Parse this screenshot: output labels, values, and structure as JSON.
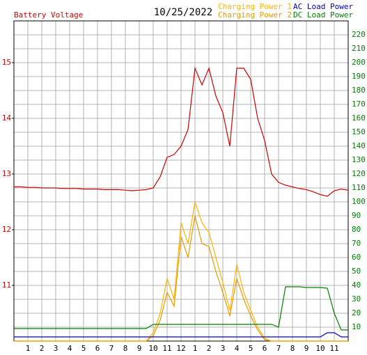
{
  "chart_data": {
    "type": "line",
    "title": "10/25/2022",
    "x": [
      0,
      0.5,
      1,
      1.5,
      2,
      2.5,
      3,
      3.5,
      4,
      4.5,
      5,
      5.5,
      6,
      6.5,
      7,
      7.5,
      8,
      8.5,
      9,
      9.5,
      10,
      10.5,
      11,
      11.5,
      12,
      12.5,
      13,
      13.5,
      14,
      14.5,
      15,
      15.5,
      16,
      16.5,
      17,
      17.5,
      18,
      18.5,
      19,
      19.5,
      20,
      20.5,
      21,
      21.5,
      22,
      22.5,
      23,
      23.5,
      24
    ],
    "xlim": [
      0,
      24
    ],
    "xticks": [
      1,
      2,
      3,
      4,
      5,
      6,
      7,
      8,
      9,
      10,
      11,
      12,
      {
        "value": 13,
        "label": "1"
      },
      {
        "value": 14,
        "label": "2"
      },
      {
        "value": 15,
        "label": "3"
      },
      {
        "value": 16,
        "label": "4"
      },
      {
        "value": 17,
        "label": "5"
      },
      {
        "value": 18,
        "label": "6"
      },
      {
        "value": 19,
        "label": "7"
      },
      {
        "value": 20,
        "label": "8"
      },
      {
        "value": 21,
        "label": "9"
      },
      {
        "value": 22,
        "label": "10"
      },
      {
        "value": 23,
        "label": "11"
      }
    ],
    "ylim": [
      10,
      15.75
    ],
    "yticks": [
      11,
      12,
      13,
      14,
      15
    ],
    "y2lim": [
      0,
      230
    ],
    "y2ticks": [
      10,
      20,
      30,
      40,
      50,
      60,
      70,
      80,
      90,
      100,
      110,
      120,
      130,
      140,
      150,
      160,
      170,
      180,
      190,
      200,
      210,
      220
    ],
    "grid": true,
    "series": [
      {
        "name": "Battery Voltage",
        "color": "#cc0000",
        "values": [
          12.77,
          12.77,
          12.76,
          12.76,
          12.75,
          12.75,
          12.75,
          12.74,
          12.74,
          12.74,
          12.73,
          12.73,
          12.73,
          12.72,
          12.72,
          12.72,
          12.71,
          12.7,
          12.71,
          12.72,
          12.75,
          12.95,
          13.3,
          13.35,
          13.5,
          13.8,
          14.9,
          14.6,
          14.9,
          14.4,
          14.1,
          13.5,
          14.9,
          14.9,
          14.7,
          14.0,
          13.6,
          13.0,
          12.85,
          12.8,
          12.77,
          12.74,
          12.72,
          12.68,
          12.63,
          12.6,
          12.7,
          12.73,
          12.71
        ]
      },
      {
        "name": "Charging Power 1",
        "color": "#ffb400",
        "axis": "y2",
        "values": [
          0,
          0,
          0,
          0,
          0,
          0,
          0,
          0,
          0,
          0,
          0,
          0,
          0,
          0,
          0,
          0,
          0,
          0,
          0,
          0,
          6,
          20,
          45,
          30,
          85,
          70,
          100,
          85,
          78,
          60,
          42,
          22,
          55,
          35,
          22,
          10,
          2,
          0,
          0,
          0,
          0,
          0,
          0,
          0,
          0,
          0,
          0,
          0,
          0
        ]
      },
      {
        "name": "Charging Power 2",
        "color": "#e89a00",
        "axis": "y2",
        "values": [
          0,
          0,
          0,
          0,
          0,
          0,
          0,
          0,
          0,
          0,
          0,
          0,
          0,
          0,
          0,
          0,
          0,
          0,
          0,
          0,
          4,
          15,
          35,
          25,
          75,
          60,
          90,
          70,
          68,
          50,
          35,
          18,
          45,
          30,
          18,
          8,
          1,
          0,
          0,
          0,
          0,
          0,
          0,
          0,
          0,
          0,
          0,
          0,
          0
        ]
      },
      {
        "name": "AC Load Power",
        "color": "#0000cc",
        "axis": "y2",
        "values": [
          3,
          3,
          3,
          3,
          3,
          3,
          3,
          3,
          3,
          3,
          3,
          3,
          3,
          3,
          3,
          3,
          3,
          3,
          3,
          3,
          3,
          3,
          3,
          3,
          3,
          3,
          3,
          3,
          3,
          3,
          3,
          3,
          3,
          3,
          3,
          3,
          3,
          3,
          3,
          3,
          3,
          3,
          3,
          3,
          3,
          6,
          6,
          3,
          3
        ]
      },
      {
        "name": "DC Load Power",
        "color": "#008000",
        "axis": "y2",
        "values": [
          9,
          9,
          9,
          9,
          9,
          9,
          9,
          9,
          9,
          9,
          9,
          9,
          9,
          9,
          9,
          9,
          9,
          9,
          9,
          9,
          12,
          12,
          12,
          12,
          12,
          12,
          12,
          12,
          12,
          12,
          12,
          12,
          12,
          12,
          12,
          12,
          12,
          12,
          10,
          39,
          39,
          39,
          38.5,
          38.5,
          38.5,
          38,
          20,
          8,
          8
        ]
      }
    ]
  }
}
